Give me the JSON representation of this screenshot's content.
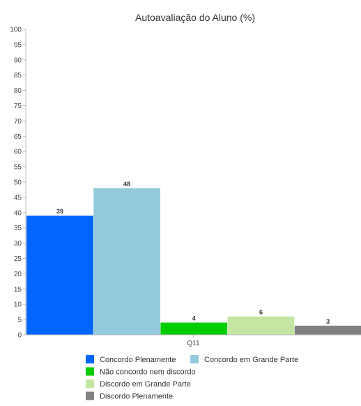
{
  "chart_data": {
    "type": "bar",
    "title": "Autoavaliação do Aluno (%)",
    "categories": [
      "Q11"
    ],
    "ylim": [
      0,
      100
    ],
    "yticks": [
      0,
      5,
      10,
      15,
      20,
      25,
      30,
      35,
      40,
      45,
      50,
      55,
      60,
      65,
      70,
      75,
      80,
      85,
      90,
      95,
      100
    ],
    "grid": false,
    "legend_position": "bottom",
    "series": [
      {
        "name": "Concordo Plenamente",
        "values": [
          39
        ],
        "color": "#0066ff"
      },
      {
        "name": "Concordo em Grande Parte",
        "values": [
          48
        ],
        "color": "#92cadc"
      },
      {
        "name": "Não concordo nem discordo",
        "values": [
          4
        ],
        "color": "#00cc00"
      },
      {
        "name": "Discordo em Grande Parte",
        "values": [
          6
        ],
        "color": "#c4e6a0"
      },
      {
        "name": "Discordo Plenamente",
        "values": [
          3
        ],
        "color": "#808080"
      }
    ]
  }
}
